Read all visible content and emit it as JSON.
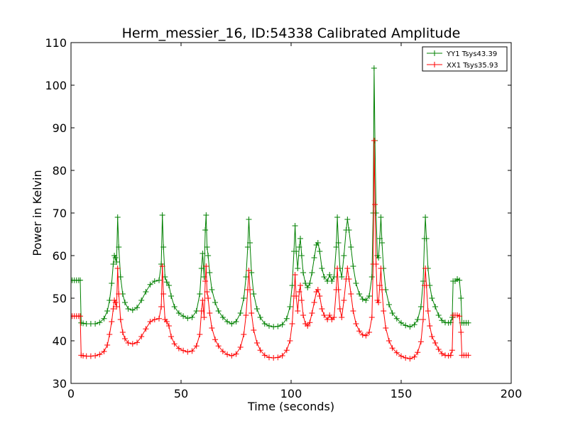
{
  "chart_data": {
    "type": "line",
    "title": "Herm_messier_16, ID:54338 Calibrated Amplitude",
    "xlabel": "Time (seconds)",
    "ylabel": "Power in Kelvin",
    "xlim": [
      0,
      200
    ],
    "ylim": [
      30,
      110
    ],
    "x_ticks": [
      0,
      50,
      100,
      150,
      200
    ],
    "y_ticks": [
      30,
      40,
      50,
      60,
      70,
      80,
      90,
      100,
      110
    ],
    "grid": false,
    "legend_position": "top-right",
    "marker": "plus",
    "series": [
      {
        "name": "YY1 Tsys43.39",
        "color": "#008000",
        "points": [
          [
            0.5,
            54.2
          ],
          [
            1.5,
            54.2
          ],
          [
            2.5,
            54.2
          ],
          [
            3.5,
            54.2
          ],
          [
            4.2,
            54.2
          ],
          [
            4.6,
            44.2
          ],
          [
            5.5,
            44.1
          ],
          [
            7,
            44.0
          ],
          [
            9,
            44.0
          ],
          [
            11,
            44.0
          ],
          [
            13,
            44.3
          ],
          [
            15,
            45.2
          ],
          [
            16.5,
            47.0
          ],
          [
            17.5,
            49.5
          ],
          [
            18.5,
            53.5
          ],
          [
            19.2,
            58.0
          ],
          [
            19.7,
            60.0
          ],
          [
            20.2,
            59.5
          ],
          [
            20.7,
            58.5
          ],
          [
            21.2,
            69.0
          ],
          [
            21.7,
            62.0
          ],
          [
            22.5,
            55.0
          ],
          [
            23.5,
            51.0
          ],
          [
            24.5,
            49.0
          ],
          [
            26,
            47.5
          ],
          [
            28,
            47.2
          ],
          [
            30,
            47.8
          ],
          [
            32,
            49.5
          ],
          [
            34,
            51.5
          ],
          [
            36,
            53.2
          ],
          [
            38,
            54.0
          ],
          [
            40,
            54.2
          ],
          [
            41,
            58.0
          ],
          [
            41.5,
            69.5
          ],
          [
            42,
            62.0
          ],
          [
            42.7,
            55.0
          ],
          [
            43.5,
            53.8
          ],
          [
            44.5,
            53.0
          ],
          [
            45.5,
            50.5
          ],
          [
            47,
            48.0
          ],
          [
            49,
            46.5
          ],
          [
            51,
            45.8
          ],
          [
            53,
            45.3
          ],
          [
            55,
            45.5
          ],
          [
            57,
            47.0
          ],
          [
            58.5,
            51.0
          ],
          [
            59.3,
            57.0
          ],
          [
            59.8,
            60.5
          ],
          [
            60.5,
            55.0
          ],
          [
            61,
            66.0
          ],
          [
            61.4,
            69.5
          ],
          [
            61.8,
            62.0
          ],
          [
            62.3,
            60.0
          ],
          [
            63,
            56.0
          ],
          [
            64,
            52.0
          ],
          [
            65.5,
            49.0
          ],
          [
            67,
            47.0
          ],
          [
            69,
            45.5
          ],
          [
            71,
            44.5
          ],
          [
            73,
            44.0
          ],
          [
            75,
            44.5
          ],
          [
            77,
            46.5
          ],
          [
            78.5,
            50.0
          ],
          [
            79.5,
            55.0
          ],
          [
            80.3,
            62.0
          ],
          [
            80.8,
            68.5
          ],
          [
            81.3,
            63.0
          ],
          [
            82,
            56.0
          ],
          [
            83,
            51.0
          ],
          [
            84.5,
            47.5
          ],
          [
            86,
            45.5
          ],
          [
            88,
            44.0
          ],
          [
            90,
            43.5
          ],
          [
            92,
            43.3
          ],
          [
            94,
            43.4
          ],
          [
            96,
            43.8
          ],
          [
            98,
            45.2
          ],
          [
            99.5,
            48.0
          ],
          [
            100.5,
            53.0
          ],
          [
            101.3,
            61.0
          ],
          [
            101.8,
            67.0
          ],
          [
            102.3,
            61.0
          ],
          [
            103,
            57.0
          ],
          [
            103.7,
            62.0
          ],
          [
            104.2,
            64.0
          ],
          [
            104.8,
            60.0
          ],
          [
            105.5,
            56.0
          ],
          [
            106.5,
            53.5
          ],
          [
            107.5,
            52.5
          ],
          [
            108.5,
            53.5
          ],
          [
            109.5,
            56.0
          ],
          [
            110.5,
            59.5
          ],
          [
            111.5,
            62.5
          ],
          [
            112.2,
            63.0
          ],
          [
            113,
            61.0
          ],
          [
            114,
            57.0
          ],
          [
            115,
            55.0
          ],
          [
            116.5,
            54.0
          ],
          [
            117.5,
            55.5
          ],
          [
            118.5,
            54.0
          ],
          [
            119.5,
            55.0
          ],
          [
            120.5,
            62.0
          ],
          [
            121,
            69.0
          ],
          [
            121.5,
            63.0
          ],
          [
            122.2,
            57.0
          ],
          [
            123,
            55.0
          ],
          [
            124,
            60.0
          ],
          [
            125,
            66.0
          ],
          [
            125.6,
            68.5
          ],
          [
            126.3,
            66.0
          ],
          [
            127.2,
            62.0
          ],
          [
            128.2,
            57.5
          ],
          [
            129.5,
            53.5
          ],
          [
            131,
            51.0
          ],
          [
            132.5,
            49.8
          ],
          [
            134,
            49.5
          ],
          [
            135.5,
            50.5
          ],
          [
            136.7,
            55.0
          ],
          [
            137.3,
            70.0
          ],
          [
            137.7,
            104.0
          ],
          [
            138.1,
            87.0
          ],
          [
            138.6,
            70.0
          ],
          [
            139.2,
            60.0
          ],
          [
            139.7,
            59.5
          ],
          [
            140.3,
            64.0
          ],
          [
            140.8,
            69.0
          ],
          [
            141.3,
            63.0
          ],
          [
            142,
            57.0
          ],
          [
            143,
            52.0
          ],
          [
            144.5,
            48.5
          ],
          [
            146,
            46.5
          ],
          [
            148,
            45.2
          ],
          [
            150,
            44.2
          ],
          [
            152,
            43.6
          ],
          [
            154,
            43.3
          ],
          [
            156,
            43.8
          ],
          [
            157.5,
            45.0
          ],
          [
            159,
            48.0
          ],
          [
            160,
            54.0
          ],
          [
            160.6,
            64.0
          ],
          [
            161,
            69.0
          ],
          [
            161.5,
            64.0
          ],
          [
            162.2,
            57.0
          ],
          [
            163,
            53.0
          ],
          [
            164,
            50.0
          ],
          [
            165.5,
            48.0
          ],
          [
            167,
            46.0
          ],
          [
            168.5,
            44.8
          ],
          [
            170,
            44.3
          ],
          [
            171.5,
            44.2
          ],
          [
            172.5,
            44.3
          ],
          [
            173.2,
            45.5
          ],
          [
            173.6,
            54.0
          ],
          [
            174.5,
            54.0
          ],
          [
            175.5,
            54.5
          ],
          [
            176.5,
            54.2
          ],
          [
            177.2,
            50.0
          ],
          [
            177.6,
            44.2
          ],
          [
            178.5,
            44.2
          ],
          [
            179.5,
            44.2
          ],
          [
            180.5,
            44.2
          ]
        ]
      },
      {
        "name": "XX1 Tsys35.93",
        "color": "#ff0000",
        "points": [
          [
            0.5,
            45.8
          ],
          [
            1.5,
            45.8
          ],
          [
            2.5,
            45.8
          ],
          [
            3.5,
            45.8
          ],
          [
            4.2,
            45.8
          ],
          [
            4.6,
            36.6
          ],
          [
            5.5,
            36.5
          ],
          [
            7,
            36.4
          ],
          [
            9,
            36.4
          ],
          [
            11,
            36.5
          ],
          [
            13,
            36.8
          ],
          [
            15,
            37.5
          ],
          [
            16.5,
            39.0
          ],
          [
            17.5,
            41.5
          ],
          [
            18.5,
            44.5
          ],
          [
            19.2,
            47.5
          ],
          [
            19.7,
            49.5
          ],
          [
            20.2,
            49.0
          ],
          [
            20.7,
            48.0
          ],
          [
            21.2,
            57.0
          ],
          [
            21.7,
            51.0
          ],
          [
            22.5,
            45.0
          ],
          [
            23.5,
            42.0
          ],
          [
            24.5,
            40.5
          ],
          [
            26,
            39.5
          ],
          [
            28,
            39.3
          ],
          [
            30,
            39.6
          ],
          [
            32,
            41.0
          ],
          [
            34,
            42.8
          ],
          [
            36,
            44.5
          ],
          [
            38,
            45.0
          ],
          [
            40,
            45.2
          ],
          [
            41,
            48.0
          ],
          [
            41.5,
            57.5
          ],
          [
            42,
            51.0
          ],
          [
            42.7,
            45.0
          ],
          [
            43.5,
            44.5
          ],
          [
            44.5,
            43.5
          ],
          [
            45.5,
            41.0
          ],
          [
            47,
            39.3
          ],
          [
            49,
            38.2
          ],
          [
            51,
            37.7
          ],
          [
            53,
            37.4
          ],
          [
            55,
            37.6
          ],
          [
            57,
            38.8
          ],
          [
            58.5,
            41.5
          ],
          [
            59.3,
            47.0
          ],
          [
            59.8,
            49.5
          ],
          [
            60.5,
            45.5
          ],
          [
            61,
            54.0
          ],
          [
            61.4,
            57.5
          ],
          [
            61.8,
            51.5
          ],
          [
            62.3,
            50.0
          ],
          [
            63,
            46.5
          ],
          [
            64,
            43.0
          ],
          [
            65.5,
            40.3
          ],
          [
            67,
            38.8
          ],
          [
            69,
            37.5
          ],
          [
            71,
            36.8
          ],
          [
            73,
            36.5
          ],
          [
            75,
            36.9
          ],
          [
            77,
            38.5
          ],
          [
            78.5,
            41.5
          ],
          [
            79.5,
            46.0
          ],
          [
            80.3,
            52.0
          ],
          [
            80.8,
            56.5
          ],
          [
            81.3,
            52.0
          ],
          [
            82,
            46.5
          ],
          [
            83,
            42.5
          ],
          [
            84.5,
            39.5
          ],
          [
            86,
            37.8
          ],
          [
            88,
            36.6
          ],
          [
            90,
            36.1
          ],
          [
            92,
            36.0
          ],
          [
            94,
            36.1
          ],
          [
            96,
            36.5
          ],
          [
            98,
            37.8
          ],
          [
            99.5,
            40.0
          ],
          [
            100.5,
            44.0
          ],
          [
            101.3,
            50.5
          ],
          [
            101.8,
            55.5
          ],
          [
            102.3,
            50.5
          ],
          [
            103,
            47.0
          ],
          [
            103.7,
            51.5
          ],
          [
            104.2,
            53.0
          ],
          [
            104.8,
            49.5
          ],
          [
            105.5,
            46.0
          ],
          [
            106.5,
            44.0
          ],
          [
            107.5,
            43.5
          ],
          [
            108.5,
            44.3
          ],
          [
            109.5,
            46.5
          ],
          [
            110.5,
            49.0
          ],
          [
            111.5,
            51.5
          ],
          [
            112.2,
            52.0
          ],
          [
            113,
            50.5
          ],
          [
            114,
            47.5
          ],
          [
            115,
            46.0
          ],
          [
            116.5,
            45.0
          ],
          [
            117.5,
            46.0
          ],
          [
            118.5,
            45.0
          ],
          [
            119.5,
            45.5
          ],
          [
            120.5,
            52.0
          ],
          [
            121,
            57.0
          ],
          [
            121.5,
            52.0
          ],
          [
            122.2,
            47.5
          ],
          [
            123,
            45.5
          ],
          [
            124,
            49.5
          ],
          [
            125,
            54.5
          ],
          [
            125.6,
            57.0
          ],
          [
            126.3,
            54.5
          ],
          [
            127.2,
            51.0
          ],
          [
            128.2,
            47.0
          ],
          [
            129.5,
            44.0
          ],
          [
            131,
            42.3
          ],
          [
            132.5,
            41.4
          ],
          [
            134,
            41.2
          ],
          [
            135.5,
            42.0
          ],
          [
            136.7,
            45.5
          ],
          [
            137.3,
            58.0
          ],
          [
            137.7,
            87.0
          ],
          [
            138.1,
            72.0
          ],
          [
            138.6,
            58.0
          ],
          [
            139.2,
            49.5
          ],
          [
            139.7,
            49.0
          ],
          [
            140.3,
            53.0
          ],
          [
            140.8,
            57.0
          ],
          [
            141.3,
            52.0
          ],
          [
            142,
            47.0
          ],
          [
            143,
            43.0
          ],
          [
            144.5,
            40.0
          ],
          [
            146,
            38.3
          ],
          [
            148,
            37.2
          ],
          [
            150,
            36.4
          ],
          [
            152,
            36.0
          ],
          [
            154,
            35.8
          ],
          [
            156,
            36.2
          ],
          [
            157.5,
            37.3
          ],
          [
            159,
            39.8
          ],
          [
            160,
            45.0
          ],
          [
            160.6,
            53.0
          ],
          [
            161,
            57.0
          ],
          [
            161.5,
            53.0
          ],
          [
            162.2,
            47.0
          ],
          [
            163,
            43.5
          ],
          [
            164,
            41.0
          ],
          [
            165.5,
            39.5
          ],
          [
            167,
            38.0
          ],
          [
            168.5,
            37.0
          ],
          [
            170,
            36.6
          ],
          [
            171.5,
            36.5
          ],
          [
            172.5,
            36.6
          ],
          [
            173.2,
            37.8
          ],
          [
            173.6,
            46.0
          ],
          [
            174.5,
            46.0
          ],
          [
            175.5,
            46.0
          ],
          [
            176.5,
            45.8
          ],
          [
            177.2,
            42.0
          ],
          [
            177.6,
            36.6
          ],
          [
            178.5,
            36.6
          ],
          [
            179.5,
            36.6
          ],
          [
            180.5,
            36.6
          ]
        ]
      }
    ]
  }
}
